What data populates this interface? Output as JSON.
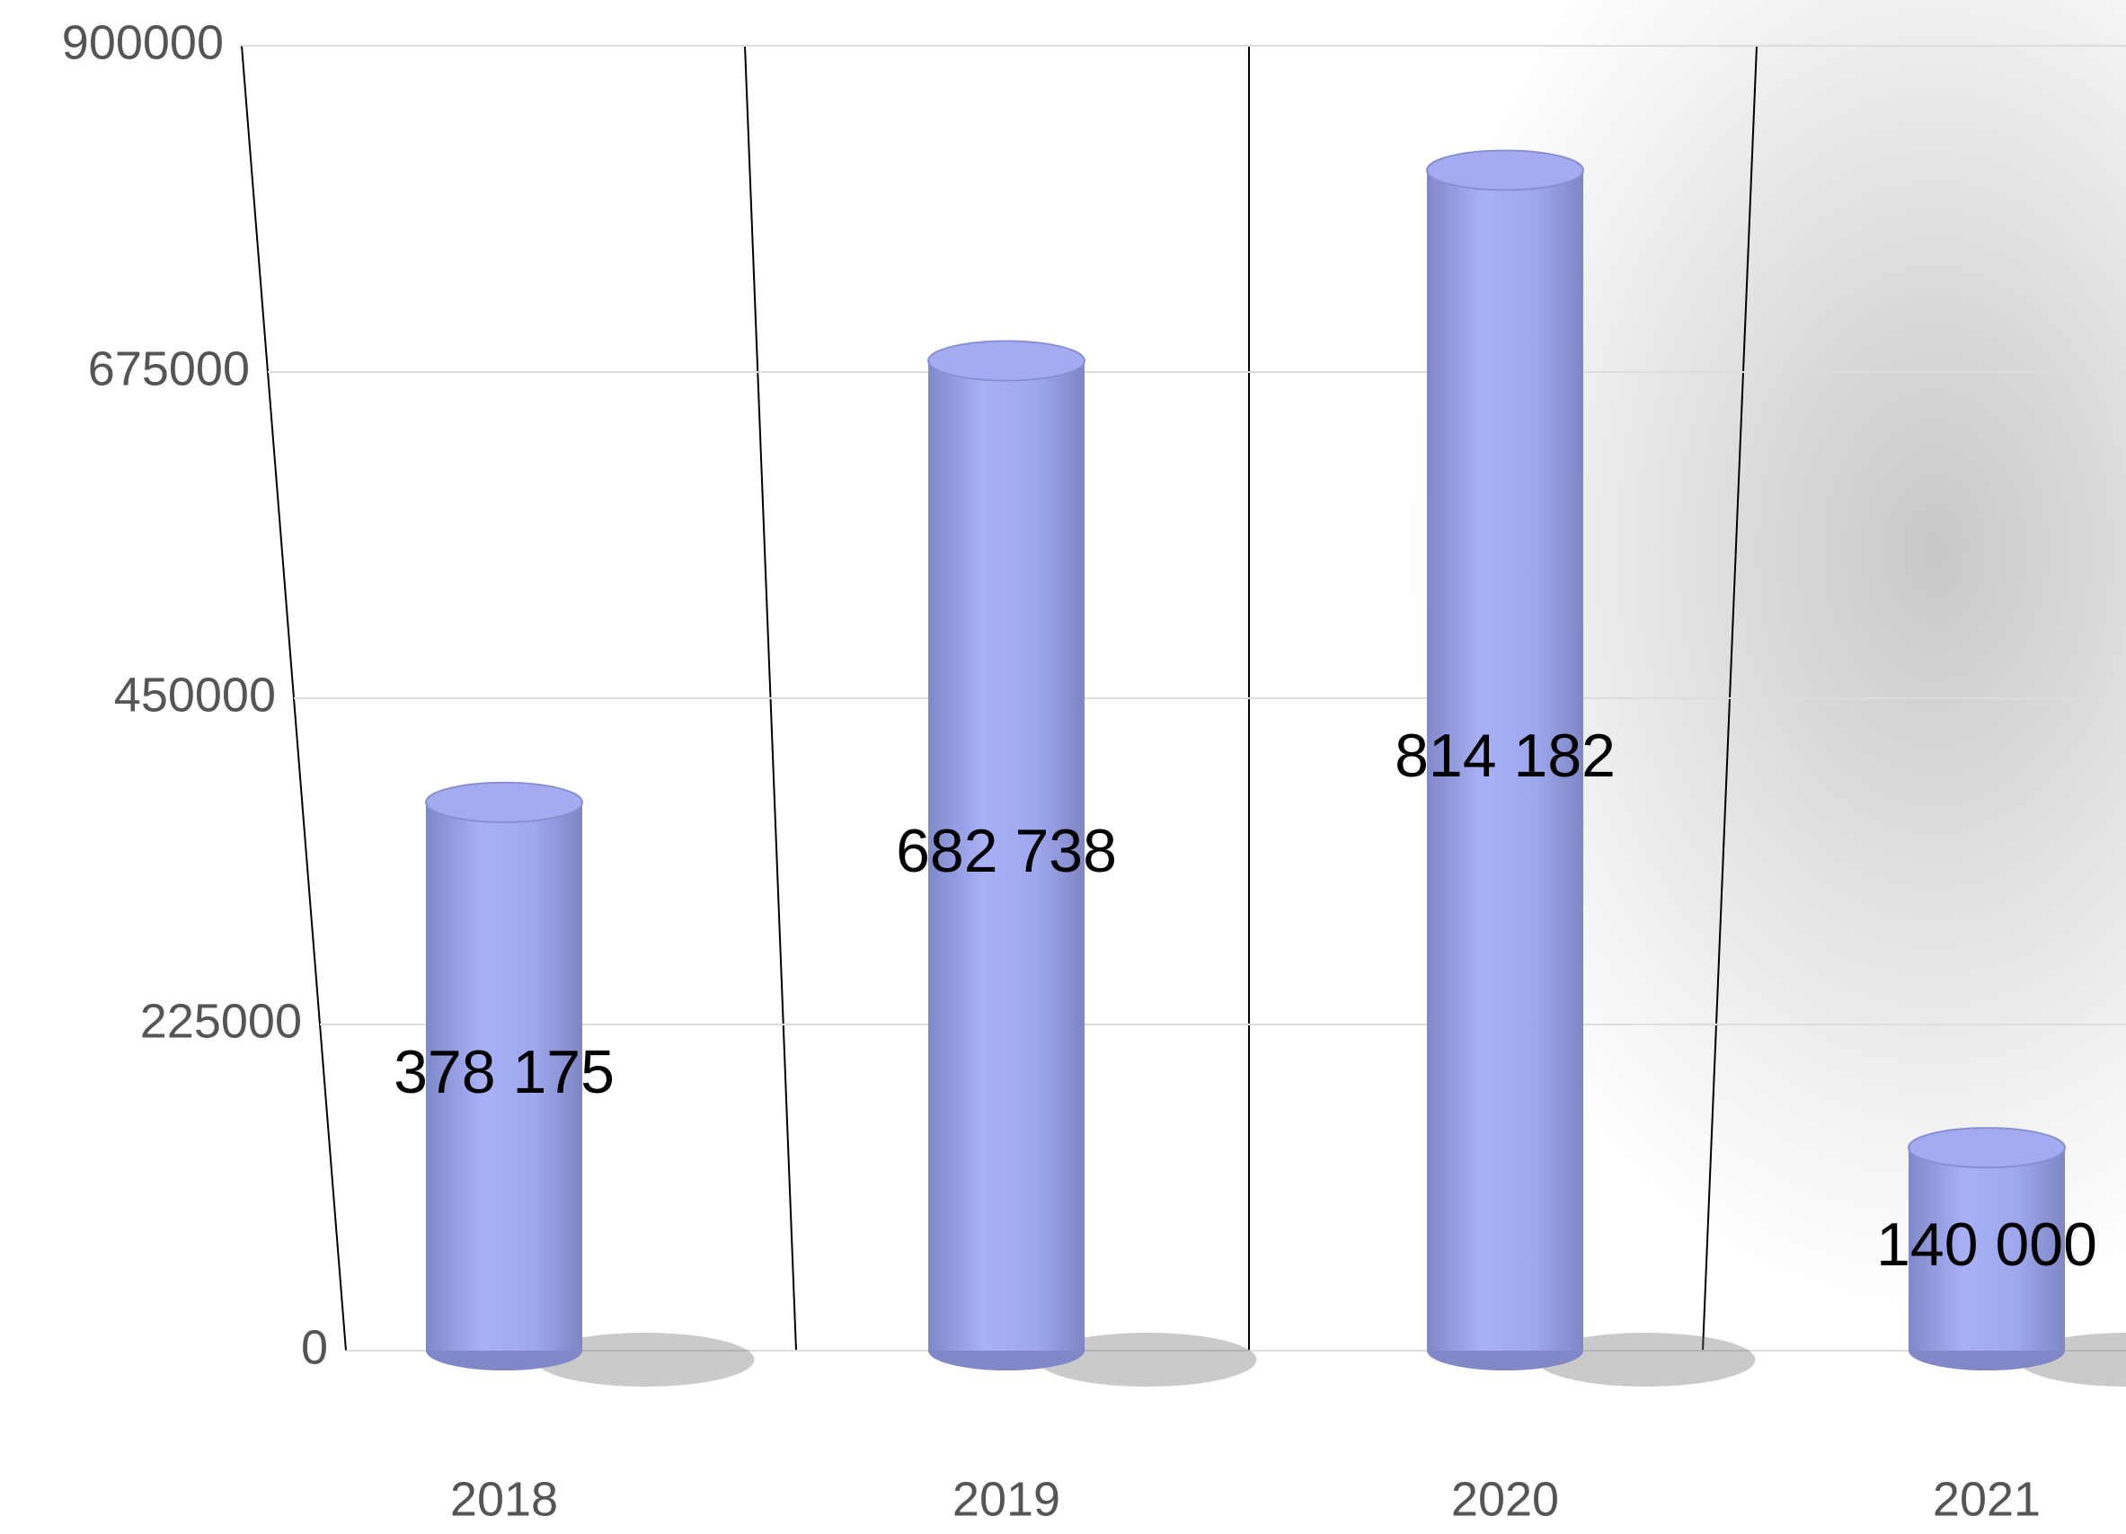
{
  "chart_data": {
    "type": "bar",
    "categories": [
      "2018",
      "2019",
      "2020",
      "2021"
    ],
    "values": [
      378175,
      682738,
      814182,
      140000
    ],
    "value_labels": [
      "378 175",
      "682 738",
      "814 182",
      "140 000"
    ],
    "color": "#a3acf2",
    "ylim": [
      0,
      900000
    ],
    "yticks": [
      0,
      225000,
      450000,
      675000,
      900000
    ],
    "grid": true
  }
}
